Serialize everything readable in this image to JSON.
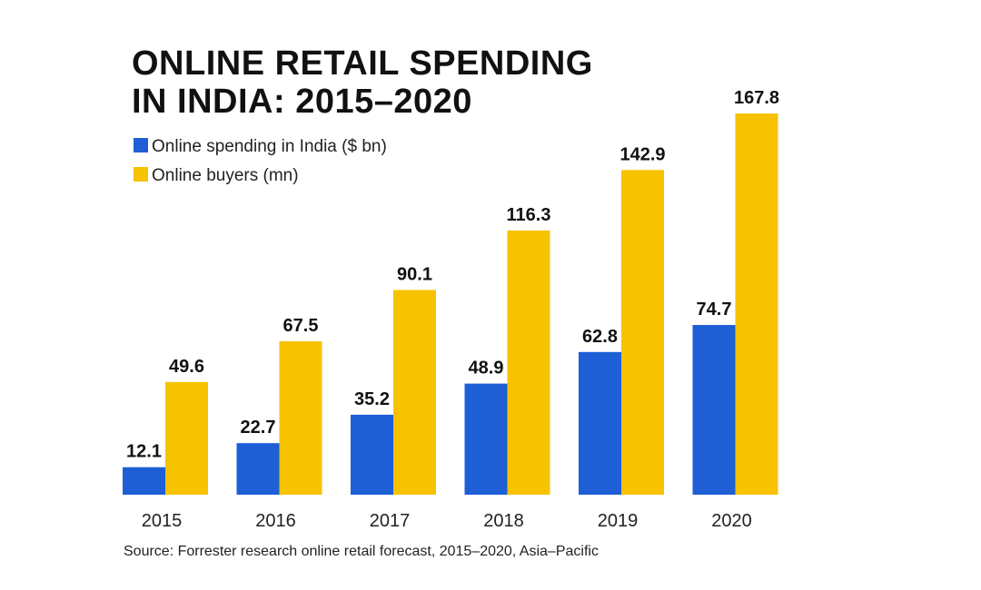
{
  "chart_data": {
    "type": "bar",
    "title_lines": [
      "ONLINE RETAIL SPENDING",
      "IN INDIA: 2015–2020"
    ],
    "categories": [
      "2015",
      "2016",
      "2017",
      "2018",
      "2019",
      "2020"
    ],
    "series": [
      {
        "name": "Online spending in India ($ bn)",
        "values": [
          12.1,
          22.7,
          35.2,
          48.9,
          62.8,
          74.7
        ],
        "labels": [
          "12.1",
          "22.7",
          "35.2",
          "48.9",
          "62.8",
          "74.7"
        ],
        "color": "#1f5fd6"
      },
      {
        "name": "Online buyers (mn)",
        "values": [
          49.6,
          67.5,
          90.1,
          116.3,
          142.9,
          167.8
        ],
        "labels": [
          "49.6",
          "67.5",
          "90.1",
          "116.3",
          "142.9",
          "167.8"
        ],
        "color": "#f7c200"
      }
    ],
    "ylim": [
      0,
      175
    ],
    "grid": false,
    "legend_position": "top-left",
    "source": "Source: Forrester research online retail forecast, 2015–2020, Asia–Pacific"
  }
}
